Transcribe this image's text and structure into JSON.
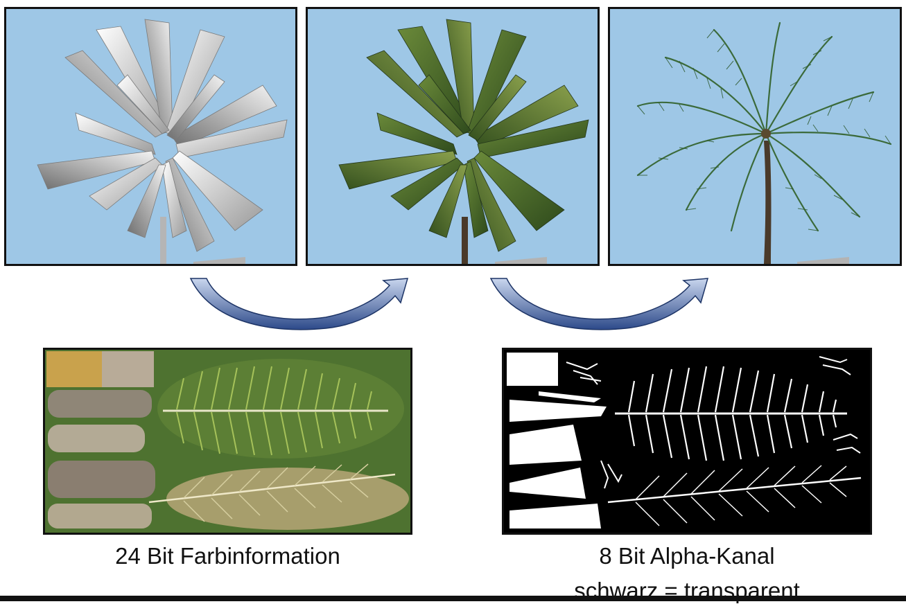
{
  "panels": {
    "wireframe": {
      "sky_color": "#9ec7e6",
      "shading": "untextured grey"
    },
    "textured": {
      "sky_color": "#9ec7e6",
      "shading": "opaque leaf texture"
    },
    "alpha": {
      "sky_color": "#9ec7e6",
      "shading": "alpha-tested fronds"
    }
  },
  "textures": {
    "color_map": {
      "background": "#4e7230",
      "caption": "24 Bit Farbinformation"
    },
    "alpha_map": {
      "background": "#000000",
      "caption_line1": "8 Bit Alpha-Kanal",
      "caption_line2": "schwarz = transparent"
    }
  },
  "arrows": {
    "color": "#2d4a8a",
    "highlight": "#c9d6ee"
  }
}
